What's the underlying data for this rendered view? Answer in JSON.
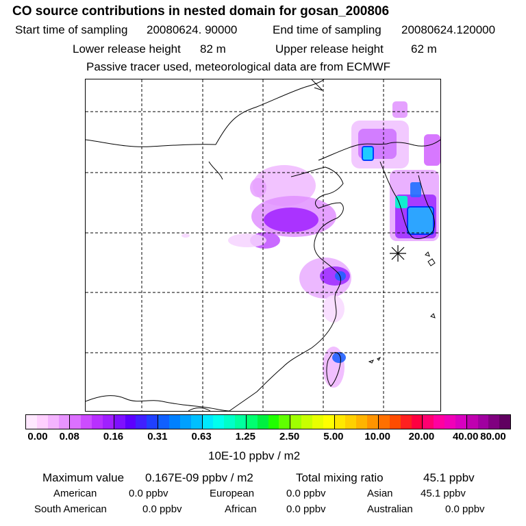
{
  "header": {
    "title": "CO  source contributions in nested domain for gosan_200806",
    "start_label": "Start time of sampling",
    "start_value": "20080624. 90000",
    "end_label": "End time of sampling",
    "end_value": "20080624.120000",
    "lower_label": "Lower release height",
    "lower_value": "82 m",
    "upper_label": "Upper release height",
    "upper_value": "62 m",
    "note": "Passive tracer used, meteorological data are from ECMWF"
  },
  "colorbar": {
    "colors": [
      "#ffe8ff",
      "#ffd0ff",
      "#f4b4ff",
      "#e894ff",
      "#dc70ff",
      "#cc4cff",
      "#b830ff",
      "#a020ff",
      "#7e10ff",
      "#5c00ff",
      "#4020ff",
      "#2040ff",
      "#1060ff",
      "#0080ff",
      "#00a0ff",
      "#00c0ff",
      "#00e8ff",
      "#00ffee",
      "#00ffc8",
      "#00ff9e",
      "#00ff70",
      "#00f040",
      "#20ff00",
      "#60ff00",
      "#a0ff00",
      "#c8ff00",
      "#e8ff00",
      "#ffff00",
      "#ffe800",
      "#ffd000",
      "#ffb400",
      "#ff9400",
      "#ff7000",
      "#ff4c00",
      "#ff2020",
      "#ff0040",
      "#ff0070",
      "#ff00a0",
      "#f000b8",
      "#d800c0",
      "#c000b0",
      "#a000a0",
      "#800080",
      "#600060"
    ],
    "ticks": [
      "0.00",
      "0.08",
      "0.16",
      "0.31",
      "0.63",
      "1.25",
      "2.50",
      "5.00",
      "10.00",
      "20.00",
      "40.00",
      "80.00"
    ],
    "unit": "10E-10 ppbv / m2"
  },
  "summary": {
    "max_label": "Maximum value",
    "max_value": "0.167E-09 ppbv / m2",
    "total_label": "Total mixing ratio",
    "total_value": "45.1 ppbv",
    "regions": [
      {
        "name": "American",
        "value": "0.0 ppbv"
      },
      {
        "name": "European",
        "value": "0.0 ppbv"
      },
      {
        "name": "Asian",
        "value": "45.1 ppbv"
      },
      {
        "name": "South American",
        "value": "0.0 ppbv"
      },
      {
        "name": "African",
        "value": "0.0 ppbv"
      },
      {
        "name": "Australian",
        "value": "0.0 ppbv"
      }
    ]
  }
}
